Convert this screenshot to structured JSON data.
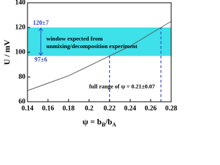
{
  "chart_data": {
    "type": "line",
    "ylabel": "U / mV",
    "xlabel": [
      "ψ = b",
      "B",
      "/b",
      "A"
    ],
    "x": [
      0.14,
      0.16,
      0.18,
      0.2,
      0.22,
      0.24,
      0.26,
      0.27,
      0.28
    ],
    "series": [
      {
        "color": "#555555",
        "values": [
          69,
          75,
          81,
          89,
          97,
          105,
          115,
          120,
          125
        ]
      }
    ],
    "xlim": [
      0.14,
      0.28
    ],
    "xticks": [
      0.14,
      0.16,
      0.18,
      0.2,
      0.22,
      0.24,
      0.26,
      0.28
    ],
    "ylim": [
      60,
      140
    ],
    "yticks": [
      60,
      80,
      100,
      120,
      140
    ],
    "band": {
      "ymin": 97,
      "ymax": 120,
      "color": "#3ee0ea",
      "upper_label": "120±7",
      "lower_label": "97±6"
    },
    "band_text": [
      "window expected from",
      "unmixing/decomposition experiment"
    ],
    "dashed_lines": {
      "color": "#3344cc",
      "x": [
        0.22,
        0.27
      ],
      "y": [
        97,
        120
      ]
    },
    "range_text": "full range of ψ = 0.21±0.07"
  }
}
